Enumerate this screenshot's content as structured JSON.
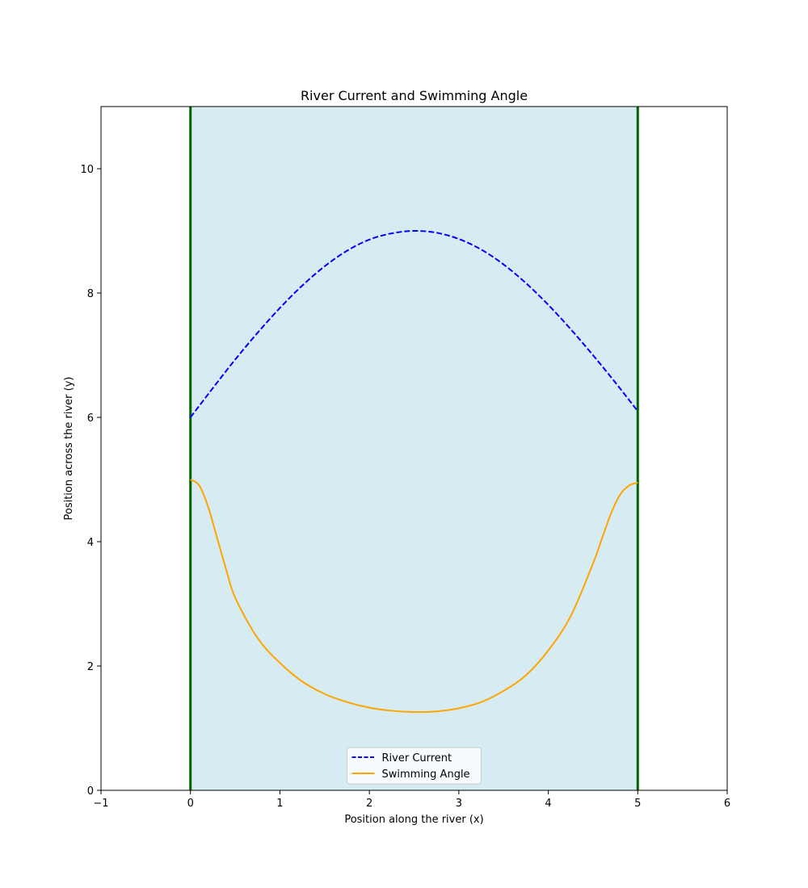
{
  "chart_data": {
    "type": "line",
    "title": "River Current and Swimming Angle",
    "xlabel": "Position along the river (x)",
    "ylabel": "Position across the river (y)",
    "xlim": [
      -1,
      6
    ],
    "ylim": [
      0,
      11
    ],
    "xticks": [
      -1,
      0,
      1,
      2,
      3,
      4,
      5,
      6
    ],
    "yticks": [
      0,
      2,
      4,
      6,
      8,
      10
    ],
    "grid": false,
    "legend_position": "lower center",
    "river_region": {
      "x_start": 0,
      "x_end": 5,
      "fill_color": "#add8e6",
      "bank_color": "#006400"
    },
    "series": [
      {
        "name": "River Current",
        "color": "#0000ff",
        "style": "dashed",
        "x": [
          0,
          0.25,
          0.5,
          0.75,
          1,
          1.25,
          1.5,
          1.75,
          2,
          2.25,
          2.5,
          2.75,
          3,
          3.25,
          3.5,
          3.75,
          4,
          4.25,
          4.5,
          4.75,
          5
        ],
        "y": [
          6.0,
          6.47,
          6.93,
          7.36,
          7.76,
          8.12,
          8.43,
          8.68,
          8.86,
          8.96,
          9.0,
          8.97,
          8.87,
          8.7,
          8.46,
          8.16,
          7.81,
          7.42,
          7.0,
          6.56,
          6.1
        ]
      },
      {
        "name": "Swimming Angle",
        "color": "#ffa500",
        "style": "solid",
        "x": [
          0,
          0.1,
          0.2,
          0.3,
          0.4,
          0.5,
          0.75,
          1,
          1.25,
          1.5,
          1.75,
          2,
          2.25,
          2.5,
          2.75,
          3,
          3.25,
          3.5,
          3.75,
          4,
          4.25,
          4.5,
          4.6,
          4.7,
          4.8,
          4.9,
          5
        ],
        "y": [
          5.0,
          4.9,
          4.55,
          4.05,
          3.55,
          3.1,
          2.45,
          2.05,
          1.75,
          1.55,
          1.42,
          1.33,
          1.28,
          1.26,
          1.27,
          1.32,
          1.42,
          1.6,
          1.85,
          2.25,
          2.8,
          3.65,
          4.05,
          4.45,
          4.75,
          4.9,
          4.95
        ]
      }
    ]
  }
}
